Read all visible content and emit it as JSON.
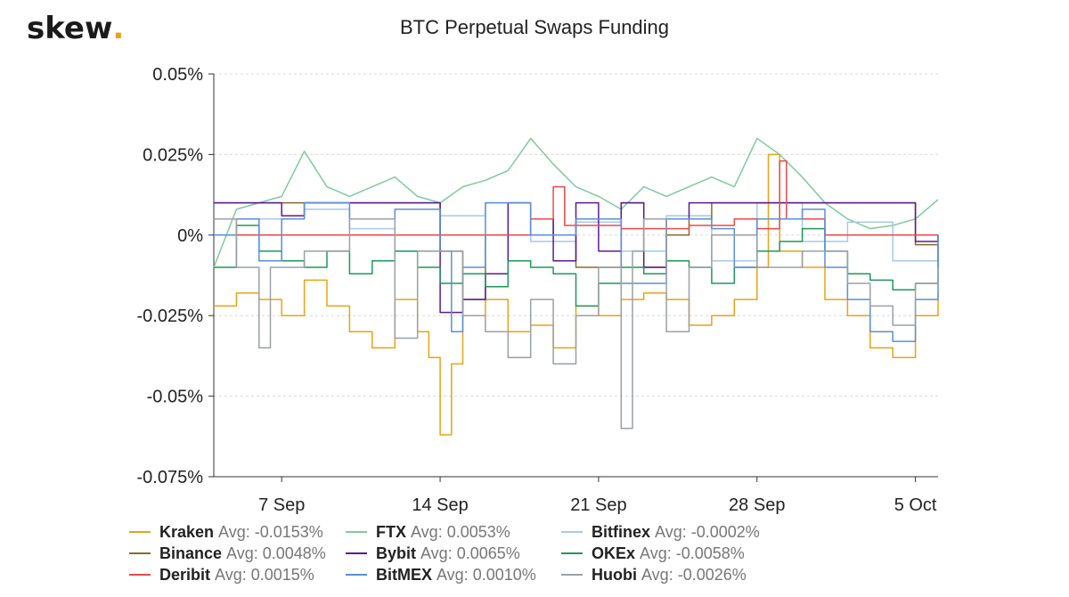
{
  "brand": {
    "name": "skew",
    "dot": "."
  },
  "chart_data": {
    "type": "line",
    "title": "BTC Perpetual Swaps Funding",
    "xlabel": "",
    "ylabel": "",
    "x_range": [
      "2020-09-04",
      "2020-10-06"
    ],
    "x_ticks": [
      {
        "date": "2020-09-07",
        "label": "7 Sep"
      },
      {
        "date": "2020-09-14",
        "label": "14 Sep"
      },
      {
        "date": "2020-09-21",
        "label": "21 Sep"
      },
      {
        "date": "2020-09-28",
        "label": "28 Sep"
      },
      {
        "date": "2020-10-05",
        "label": "5 Oct"
      }
    ],
    "ylim": [
      -0.075,
      0.05
    ],
    "y_ticks": [
      {
        "value": 0.05,
        "label": "0.05%"
      },
      {
        "value": 0.025,
        "label": "0.025%"
      },
      {
        "value": 0,
        "label": "0%"
      },
      {
        "value": -0.025,
        "label": "-0.025%"
      },
      {
        "value": -0.05,
        "label": "-0.05%"
      },
      {
        "value": -0.075,
        "label": "-0.075%"
      }
    ],
    "grid": true,
    "legend_position": "bottom",
    "series": [
      {
        "name": "Kraken",
        "avg_label": "Avg: -0.0153%",
        "color": "#e8a317",
        "step": true,
        "points": [
          [
            "2020-09-04",
            -0.022
          ],
          [
            "2020-09-05",
            -0.018
          ],
          [
            "2020-09-06",
            -0.02
          ],
          [
            "2020-09-07",
            -0.025
          ],
          [
            "2020-09-08",
            -0.014
          ],
          [
            "2020-09-09",
            -0.022
          ],
          [
            "2020-09-10",
            -0.03
          ],
          [
            "2020-09-11",
            -0.035
          ],
          [
            "2020-09-12",
            -0.02
          ],
          [
            "2020-09-13",
            -0.03
          ],
          [
            "2020-09-13.5",
            -0.038
          ],
          [
            "2020-09-14",
            -0.062
          ],
          [
            "2020-09-14.5",
            -0.04
          ],
          [
            "2020-09-15",
            -0.025
          ],
          [
            "2020-09-16",
            -0.02
          ],
          [
            "2020-09-17",
            -0.03
          ],
          [
            "2020-09-18",
            -0.028
          ],
          [
            "2020-09-19",
            -0.035
          ],
          [
            "2020-09-20",
            -0.022
          ],
          [
            "2020-09-21",
            -0.025
          ],
          [
            "2020-09-22",
            -0.02
          ],
          [
            "2020-09-23",
            -0.018
          ],
          [
            "2020-09-24",
            -0.02
          ],
          [
            "2020-09-25",
            -0.028
          ],
          [
            "2020-09-26",
            -0.025
          ],
          [
            "2020-09-27",
            -0.02
          ],
          [
            "2020-09-28",
            -0.01
          ],
          [
            "2020-09-28.5",
            0.025
          ],
          [
            "2020-09-29",
            -0.005
          ],
          [
            "2020-09-30",
            -0.01
          ],
          [
            "2020-10-01",
            -0.02
          ],
          [
            "2020-10-02",
            -0.025
          ],
          [
            "2020-10-03",
            -0.035
          ],
          [
            "2020-10-04",
            -0.038
          ],
          [
            "2020-10-05",
            -0.025
          ],
          [
            "2020-10-06",
            -0.018
          ]
        ]
      },
      {
        "name": "FTX",
        "avg_label": "Avg: 0.0053%",
        "color": "#7ecb9d",
        "step": false,
        "points": [
          [
            "2020-09-04",
            -0.01
          ],
          [
            "2020-09-05",
            0.008
          ],
          [
            "2020-09-06",
            0.01
          ],
          [
            "2020-09-07",
            0.012
          ],
          [
            "2020-09-08",
            0.026
          ],
          [
            "2020-09-09",
            0.015
          ],
          [
            "2020-09-10",
            0.012
          ],
          [
            "2020-09-11",
            0.015
          ],
          [
            "2020-09-12",
            0.018
          ],
          [
            "2020-09-13",
            0.012
          ],
          [
            "2020-09-14",
            0.01
          ],
          [
            "2020-09-15",
            0.015
          ],
          [
            "2020-09-16",
            0.017
          ],
          [
            "2020-09-17",
            0.02
          ],
          [
            "2020-09-18",
            0.03
          ],
          [
            "2020-09-19",
            0.022
          ],
          [
            "2020-09-20",
            0.015
          ],
          [
            "2020-09-21",
            0.012
          ],
          [
            "2020-09-22",
            0.008
          ],
          [
            "2020-09-23",
            0.015
          ],
          [
            "2020-09-24",
            0.012
          ],
          [
            "2020-09-25",
            0.015
          ],
          [
            "2020-09-26",
            0.018
          ],
          [
            "2020-09-27",
            0.015
          ],
          [
            "2020-09-28",
            0.03
          ],
          [
            "2020-09-29",
            0.025
          ],
          [
            "2020-09-30",
            0.018
          ],
          [
            "2020-10-01",
            0.01
          ],
          [
            "2020-10-02",
            0.005
          ],
          [
            "2020-10-03",
            0.002
          ],
          [
            "2020-10-04",
            0.003
          ],
          [
            "2020-10-05",
            0.005
          ],
          [
            "2020-10-06",
            0.011
          ]
        ]
      },
      {
        "name": "Bitfinex",
        "avg_label": "Avg: -0.0002%",
        "color": "#a8c8e8",
        "step": true,
        "points": [
          [
            "2020-09-04",
            0.0
          ],
          [
            "2020-09-06",
            0.005
          ],
          [
            "2020-09-08",
            0.008
          ],
          [
            "2020-09-10",
            0.002
          ],
          [
            "2020-09-12",
            -0.005
          ],
          [
            "2020-09-14",
            0.006
          ],
          [
            "2020-09-16",
            0.01
          ],
          [
            "2020-09-18",
            -0.002
          ],
          [
            "2020-09-20",
            0.004
          ],
          [
            "2020-09-22",
            -0.005
          ],
          [
            "2020-09-24",
            0.006
          ],
          [
            "2020-09-26",
            -0.008
          ],
          [
            "2020-09-28",
            0.01
          ],
          [
            "2020-09-30",
            -0.002
          ],
          [
            "2020-10-02",
            0.004
          ],
          [
            "2020-10-04",
            -0.008
          ],
          [
            "2020-10-06",
            0.0
          ]
        ]
      },
      {
        "name": "Binance",
        "avg_label": "Avg: 0.0048%",
        "color": "#8a6a2a",
        "step": true,
        "points": [
          [
            "2020-09-04",
            0.01
          ],
          [
            "2020-09-08",
            0.01
          ],
          [
            "2020-09-12",
            0.01
          ],
          [
            "2020-09-14",
            -0.005
          ],
          [
            "2020-09-15",
            -0.02
          ],
          [
            "2020-09-16",
            0.0
          ],
          [
            "2020-09-18",
            0.005
          ],
          [
            "2020-09-19",
            0.0
          ],
          [
            "2020-09-20",
            -0.01
          ],
          [
            "2020-09-21",
            -0.01
          ],
          [
            "2020-09-22",
            0.01
          ],
          [
            "2020-09-23",
            -0.01
          ],
          [
            "2020-09-24",
            0.0
          ],
          [
            "2020-09-25",
            0.005
          ],
          [
            "2020-09-26",
            0.01
          ],
          [
            "2020-09-28",
            0.01
          ],
          [
            "2020-09-30",
            0.01
          ],
          [
            "2020-10-04",
            0.01
          ],
          [
            "2020-10-05",
            -0.003
          ],
          [
            "2020-10-06",
            -0.01
          ]
        ]
      },
      {
        "name": "Bybit",
        "avg_label": "Avg: 0.0065%",
        "color": "#5b1a94",
        "step": true,
        "points": [
          [
            "2020-09-04",
            0.01
          ],
          [
            "2020-09-06",
            0.01
          ],
          [
            "2020-09-07",
            0.006
          ],
          [
            "2020-09-08",
            0.01
          ],
          [
            "2020-09-13",
            0.01
          ],
          [
            "2020-09-14",
            -0.024
          ],
          [
            "2020-09-15",
            -0.02
          ],
          [
            "2020-09-16",
            -0.012
          ],
          [
            "2020-09-17",
            0.01
          ],
          [
            "2020-09-18",
            0.005
          ],
          [
            "2020-09-19",
            -0.008
          ],
          [
            "2020-09-20",
            0.01
          ],
          [
            "2020-09-21",
            -0.005
          ],
          [
            "2020-09-22",
            0.01
          ],
          [
            "2020-09-23",
            -0.01
          ],
          [
            "2020-09-24",
            0.005
          ],
          [
            "2020-09-25",
            0.01
          ],
          [
            "2020-09-26",
            0.01
          ],
          [
            "2020-10-01",
            0.01
          ],
          [
            "2020-10-04",
            0.01
          ],
          [
            "2020-10-05",
            -0.002
          ],
          [
            "2020-10-06",
            0.0
          ]
        ]
      },
      {
        "name": "OKEx",
        "avg_label": "Avg: -0.0058%",
        "color": "#1e9a5a",
        "step": true,
        "points": [
          [
            "2020-09-04",
            -0.01
          ],
          [
            "2020-09-05",
            0.003
          ],
          [
            "2020-09-06",
            -0.005
          ],
          [
            "2020-09-07",
            -0.008
          ],
          [
            "2020-09-08",
            -0.01
          ],
          [
            "2020-09-09",
            -0.005
          ],
          [
            "2020-09-10",
            -0.012
          ],
          [
            "2020-09-11",
            -0.008
          ],
          [
            "2020-09-12",
            -0.005
          ],
          [
            "2020-09-13",
            -0.01
          ],
          [
            "2020-09-14",
            -0.015
          ],
          [
            "2020-09-15",
            -0.012
          ],
          [
            "2020-09-16",
            -0.016
          ],
          [
            "2020-09-17",
            -0.008
          ],
          [
            "2020-09-18",
            -0.01
          ],
          [
            "2020-09-19",
            -0.012
          ],
          [
            "2020-09-20",
            -0.022
          ],
          [
            "2020-09-21",
            -0.015
          ],
          [
            "2020-09-22",
            -0.01
          ],
          [
            "2020-09-23",
            -0.012
          ],
          [
            "2020-09-24",
            -0.008
          ],
          [
            "2020-09-25",
            -0.01
          ],
          [
            "2020-09-26",
            -0.015
          ],
          [
            "2020-09-27",
            -0.01
          ],
          [
            "2020-09-28",
            -0.005
          ],
          [
            "2020-09-29",
            -0.002
          ],
          [
            "2020-09-30",
            0.002
          ],
          [
            "2020-10-01",
            -0.005
          ],
          [
            "2020-10-02",
            -0.012
          ],
          [
            "2020-10-03",
            -0.014
          ],
          [
            "2020-10-04",
            -0.017
          ],
          [
            "2020-10-05",
            -0.015
          ],
          [
            "2020-10-06",
            -0.012
          ]
        ]
      },
      {
        "name": "Deribit",
        "avg_label": "Avg: 0.0015%",
        "color": "#e84a4a",
        "step": true,
        "points": [
          [
            "2020-09-04",
            0.0
          ],
          [
            "2020-09-10",
            0.0
          ],
          [
            "2020-09-14",
            0.0
          ],
          [
            "2020-09-18",
            0.005
          ],
          [
            "2020-09-19",
            0.015
          ],
          [
            "2020-09-19.5",
            0.003
          ],
          [
            "2020-09-22",
            0.002
          ],
          [
            "2020-09-25",
            0.003
          ],
          [
            "2020-09-27",
            0.005
          ],
          [
            "2020-09-28",
            0.002
          ],
          [
            "2020-09-29",
            0.023
          ],
          [
            "2020-09-29.3",
            0.005
          ],
          [
            "2020-10-01",
            0.0
          ],
          [
            "2020-10-06",
            0.0
          ]
        ]
      },
      {
        "name": "BitMEX",
        "avg_label": "Avg: 0.0010%",
        "color": "#5a8fd8",
        "step": true,
        "points": [
          [
            "2020-09-04",
            0.0
          ],
          [
            "2020-09-05",
            0.005
          ],
          [
            "2020-09-06",
            -0.008
          ],
          [
            "2020-09-07",
            0.005
          ],
          [
            "2020-09-08",
            0.01
          ],
          [
            "2020-09-10",
            0.005
          ],
          [
            "2020-09-12",
            0.008
          ],
          [
            "2020-09-14",
            -0.005
          ],
          [
            "2020-09-14.5",
            -0.03
          ],
          [
            "2020-09-15",
            -0.01
          ],
          [
            "2020-09-16",
            0.01
          ],
          [
            "2020-09-18",
            0.0
          ],
          [
            "2020-09-20",
            0.005
          ],
          [
            "2020-09-22",
            -0.015
          ],
          [
            "2020-09-24",
            0.005
          ],
          [
            "2020-09-26",
            0.002
          ],
          [
            "2020-09-27",
            -0.01
          ],
          [
            "2020-09-28",
            0.005
          ],
          [
            "2020-09-30",
            0.008
          ],
          [
            "2020-10-01",
            -0.01
          ],
          [
            "2020-10-02",
            -0.02
          ],
          [
            "2020-10-03",
            -0.03
          ],
          [
            "2020-10-04",
            -0.033
          ],
          [
            "2020-10-05",
            -0.02
          ],
          [
            "2020-10-06",
            0.0
          ]
        ]
      },
      {
        "name": "Huobi",
        "avg_label": "Avg: -0.0026%",
        "color": "#9aa0a6",
        "step": true,
        "points": [
          [
            "2020-09-04",
            0.005
          ],
          [
            "2020-09-05",
            -0.01
          ],
          [
            "2020-09-06",
            -0.035
          ],
          [
            "2020-09-06.5",
            -0.01
          ],
          [
            "2020-09-08",
            -0.005
          ],
          [
            "2020-09-10",
            0.005
          ],
          [
            "2020-09-12",
            -0.032
          ],
          [
            "2020-09-13",
            -0.005
          ],
          [
            "2020-09-15",
            -0.025
          ],
          [
            "2020-09-16",
            -0.03
          ],
          [
            "2020-09-17",
            -0.038
          ],
          [
            "2020-09-18",
            -0.02
          ],
          [
            "2020-09-19",
            -0.04
          ],
          [
            "2020-09-20",
            -0.025
          ],
          [
            "2020-09-21",
            -0.01
          ],
          [
            "2020-09-22",
            -0.06
          ],
          [
            "2020-09-22.5",
            -0.005
          ],
          [
            "2020-09-23",
            0.005
          ],
          [
            "2020-09-24",
            -0.03
          ],
          [
            "2020-09-25",
            -0.01
          ],
          [
            "2020-09-26",
            0.0
          ],
          [
            "2020-09-28",
            -0.01
          ],
          [
            "2020-09-30",
            -0.005
          ],
          [
            "2020-10-02",
            -0.015
          ],
          [
            "2020-10-03",
            -0.022
          ],
          [
            "2020-10-04",
            -0.028
          ],
          [
            "2020-10-05",
            -0.015
          ],
          [
            "2020-10-06",
            -0.012
          ]
        ]
      }
    ]
  }
}
